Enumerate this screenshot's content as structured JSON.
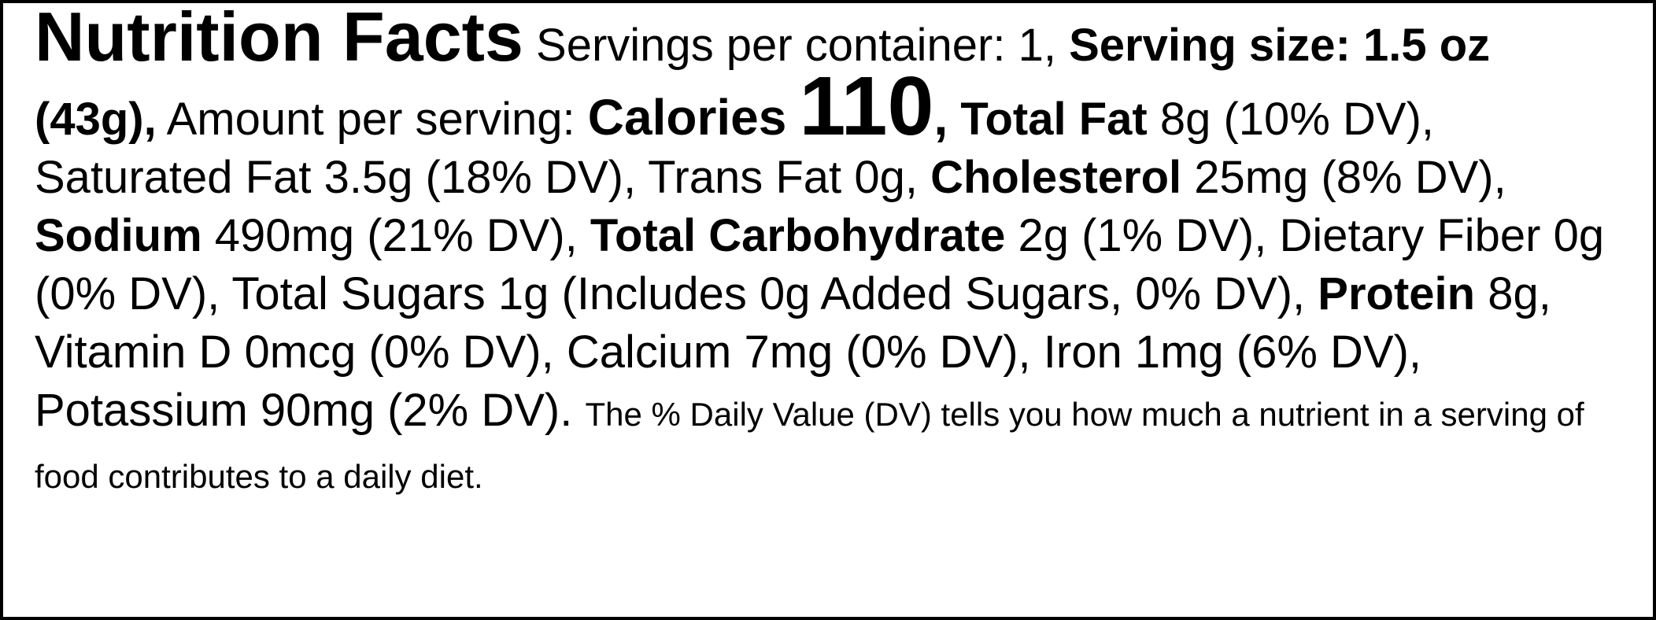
{
  "label": {
    "title": "Nutrition Facts",
    "servings": "Servings per container: 1,",
    "serving_size": "Serving size: 1.5 oz (43g),",
    "amount_per_serving": "Amount per serving:",
    "calories_label": "Calories",
    "calories_value": "110",
    "calories_sep": ",",
    "nutrients": [
      {
        "name": "Total Fat",
        "amount": "8g (10% DV),",
        "bold": true
      },
      {
        "name": "Saturated Fat",
        "amount": "3.5g (18% DV),",
        "bold": false
      },
      {
        "name": "Trans Fat",
        "amount": "0g,",
        "bold": false
      },
      {
        "name": "Cholesterol",
        "amount": "25mg (8% DV),",
        "bold": true
      },
      {
        "name": "Sodium",
        "amount": "490mg (21% DV),",
        "bold": true
      },
      {
        "name": "Total Carbohydrate",
        "amount": "2g (1% DV),",
        "bold": true
      },
      {
        "name": "Dietary Fiber",
        "amount": "0g (0% DV),",
        "bold": false
      },
      {
        "name": "Total Sugars",
        "amount": "1g (Includes 0g Added Sugars, 0% DV),",
        "bold": false
      },
      {
        "name": "Protein",
        "amount": "8g,",
        "bold": true
      },
      {
        "name": "Vitamin D",
        "amount": "0mcg (0% DV),",
        "bold": false
      },
      {
        "name": "Calcium",
        "amount": "7mg (0% DV),",
        "bold": false
      },
      {
        "name": "Iron",
        "amount": "1mg (6% DV),",
        "bold": false
      },
      {
        "name": "Potassium",
        "amount": "90mg (2% DV).",
        "bold": false
      }
    ],
    "footnote": "The % Daily Value (DV) tells you how much a nutrient in a serving of food contributes to a daily diet."
  }
}
